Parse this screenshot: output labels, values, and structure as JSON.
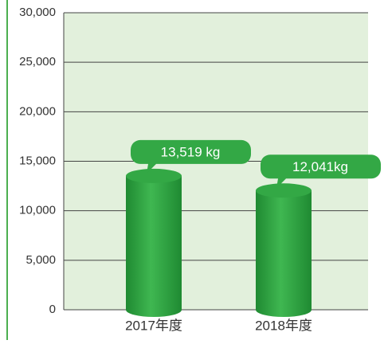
{
  "chart_data": {
    "type": "bar",
    "categories": [
      "2017年度",
      "2018年度"
    ],
    "values": [
      13519,
      12041
    ],
    "value_labels": [
      "13,519 kg",
      "12,041kg"
    ],
    "color": "#33a845",
    "ylim": [
      0,
      30000
    ],
    "yticks": [
      0,
      {
        "value": 5000,
        "label": "5,000"
      },
      {
        "value": 10000,
        "label": "10,000"
      },
      {
        "value": 15000,
        "label": "15,000"
      },
      {
        "value": 20000,
        "label": "20,000"
      },
      {
        "value": 25000,
        "label": "25,000"
      },
      {
        "value": 30000,
        "label": "30,000"
      }
    ],
    "grid": true
  }
}
